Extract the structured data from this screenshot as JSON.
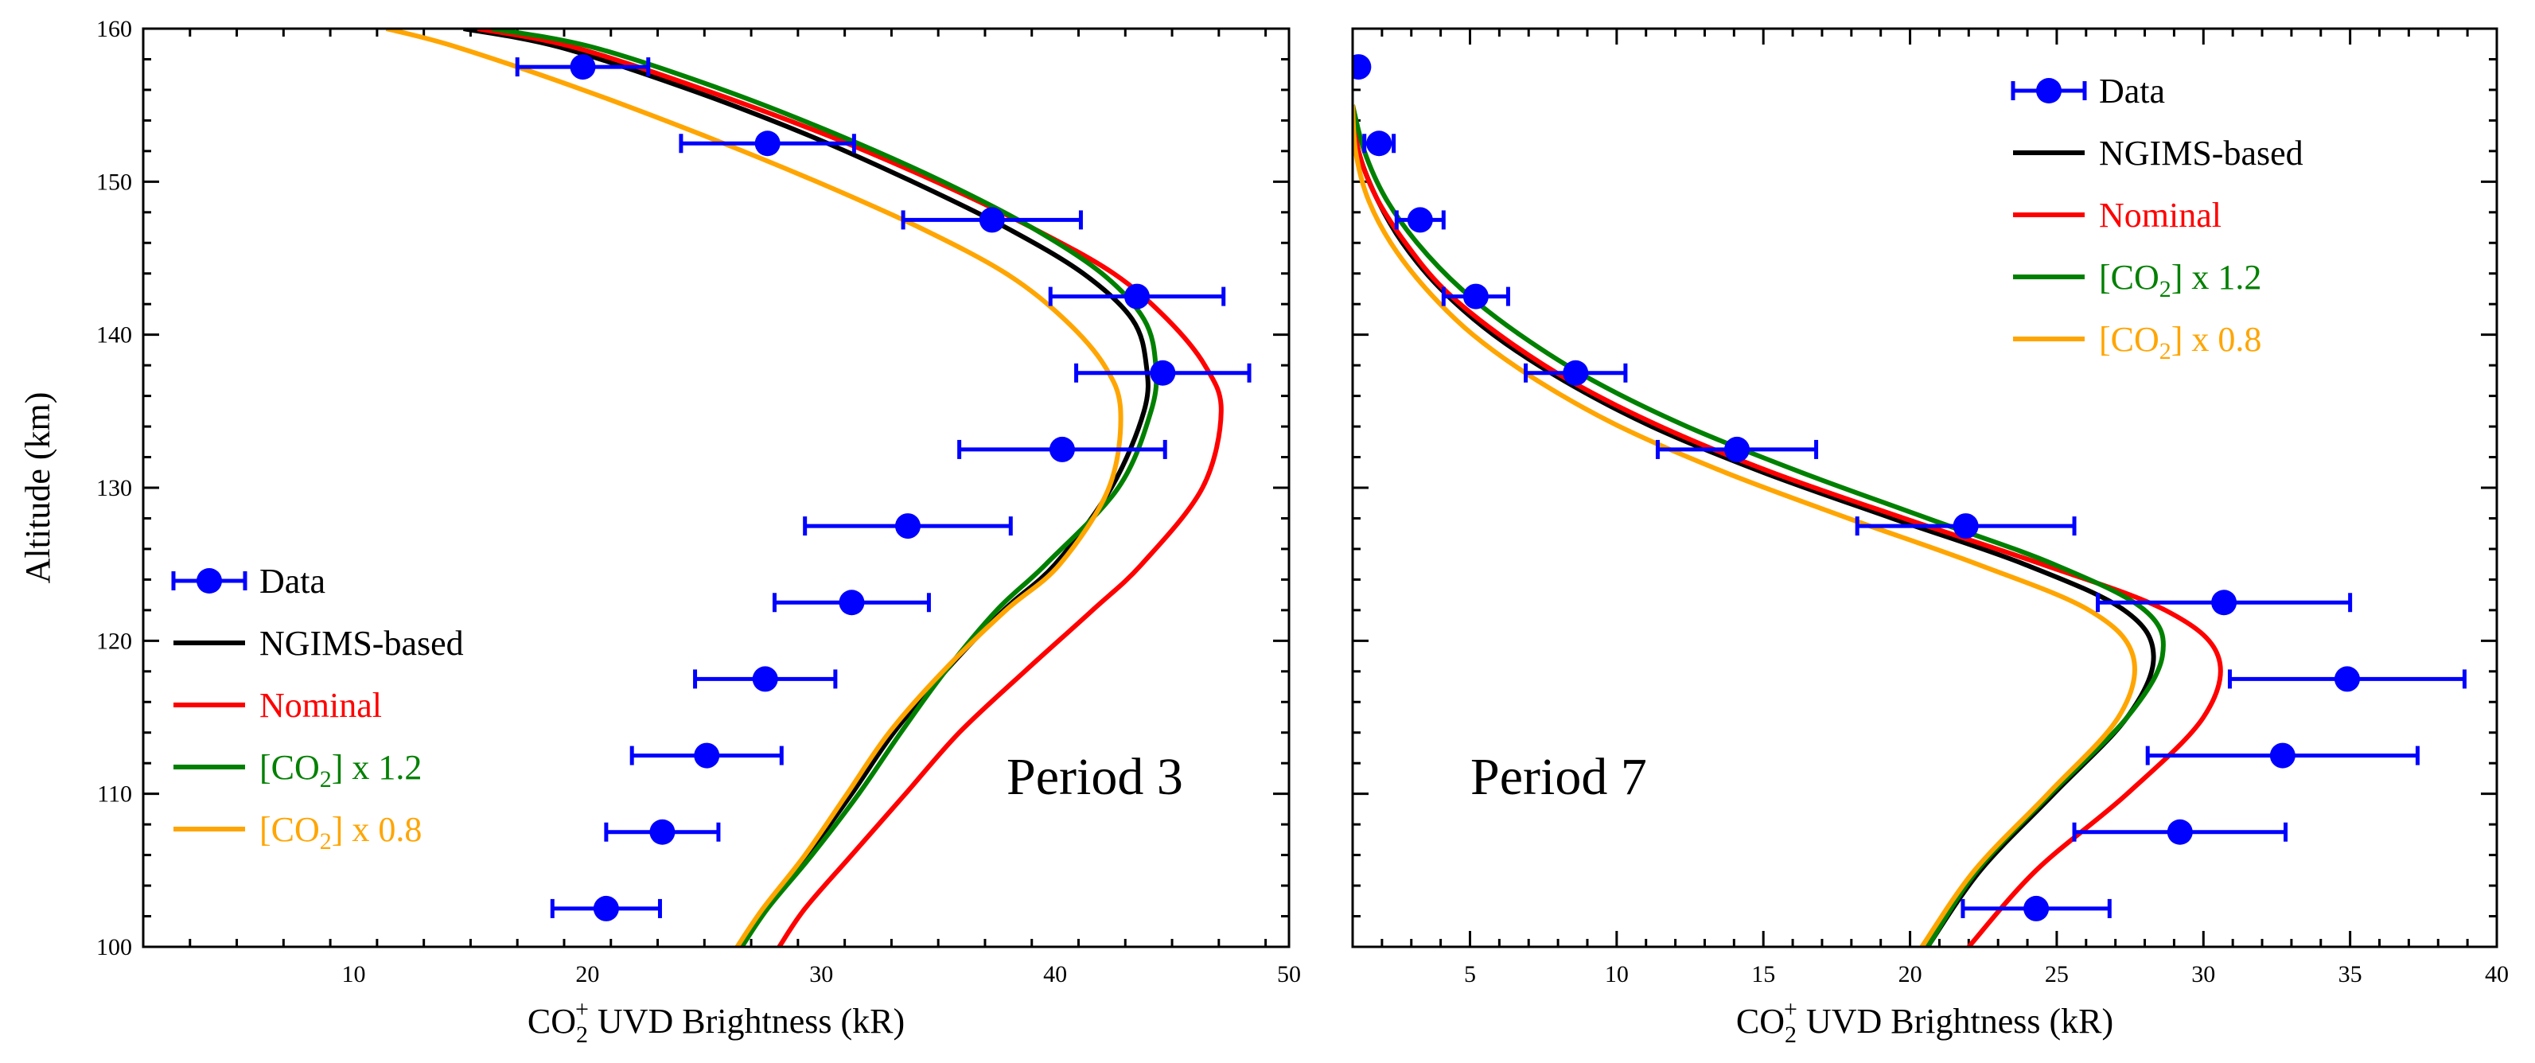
{
  "chart_data": [
    {
      "type": "line",
      "panel_label": "Period 3",
      "xlabel": {
        "main": "CO",
        "sub": "2",
        "sup": "+",
        "rest": " UVD Brightness (kR)"
      },
      "ylabel": "Altitude (km)",
      "xlim": [
        1,
        50
      ],
      "ylim": [
        100,
        160
      ],
      "xticks": [
        10,
        20,
        30,
        40,
        50
      ],
      "yticks": [
        100,
        110,
        120,
        130,
        140,
        150,
        160
      ],
      "legend_position": "lower-left",
      "data": {
        "name": "Data",
        "color": "#0000ff",
        "points": [
          {
            "x": 20.8,
            "y": 102.5,
            "xerr": 2.3
          },
          {
            "x": 23.2,
            "y": 107.5,
            "xerr": 2.4
          },
          {
            "x": 25.1,
            "y": 112.5,
            "xerr": 3.2
          },
          {
            "x": 27.6,
            "y": 117.5,
            "xerr": 3.0
          },
          {
            "x": 31.3,
            "y": 122.5,
            "xerr": 3.3
          },
          {
            "x": 33.7,
            "y": 127.5,
            "xerr": 4.4
          },
          {
            "x": 40.3,
            "y": 132.5,
            "xerr": 4.4
          },
          {
            "x": 44.6,
            "y": 137.5,
            "xerr": 3.7
          },
          {
            "x": 43.5,
            "y": 142.5,
            "xerr": 3.7
          },
          {
            "x": 37.3,
            "y": 147.5,
            "xerr": 3.8
          },
          {
            "x": 27.7,
            "y": 152.5,
            "xerr": 3.7
          },
          {
            "x": 19.8,
            "y": 157.5,
            "xerr": 2.8
          }
        ]
      },
      "series": [
        {
          "name": "NGIMS-based",
          "color": "#000000",
          "x": [
            26.6,
            27.6,
            29.4,
            31.3,
            33.1,
            35.3,
            37.8,
            40.0,
            42.4,
            43.8,
            43.9,
            43.3,
            41.2,
            37.9,
            33.9,
            29.5,
            24.4,
            18.8,
            14.7
          ],
          "y": [
            100,
            102.5,
            106,
            110,
            114,
            118,
            122,
            125,
            130,
            135,
            138,
            141,
            144,
            147,
            150,
            153,
            156,
            158.8,
            160
          ]
        },
        {
          "name": "Nominal",
          "color": "#ff0000",
          "x": [
            28.2,
            29.3,
            31.3,
            33.6,
            35.9,
            38.7,
            41.6,
            43.7,
            46.3,
            47.1,
            46.4,
            44.8,
            42.5,
            39.0,
            34.9,
            30.3,
            25.0,
            19.4,
            15.3
          ],
          "y": [
            100,
            102.5,
            106,
            110,
            114,
            118,
            122,
            125,
            130,
            135,
            138,
            141,
            144,
            147,
            150,
            153,
            156,
            158.8,
            160
          ]
        },
        {
          "name": "[CO2] x 1.2",
          "label_main": "[CO",
          "label_sub": "2",
          "label_rest": "] x 1.2",
          "color": "#008000",
          "x": [
            26.6,
            27.7,
            29.6,
            31.6,
            33.4,
            35.3,
            37.5,
            39.6,
            42.7,
            44.1,
            44.3,
            43.8,
            42.0,
            39.0,
            35.2,
            30.8,
            25.8,
            20.2,
            15.9
          ],
          "y": [
            100,
            102.5,
            106,
            110,
            114,
            118,
            122,
            125,
            130,
            135,
            138,
            141,
            144,
            147,
            150,
            153,
            156,
            158.8,
            160
          ]
        },
        {
          "name": "[CO2] x 0.8",
          "label_main": "[CO",
          "label_sub": "2",
          "label_rest": "] x 0.8",
          "color": "#ffa500",
          "x": [
            26.4,
            27.5,
            29.3,
            31.1,
            32.9,
            35.2,
            37.9,
            40.2,
            42.3,
            42.8,
            42.1,
            40.4,
            37.9,
            34.2,
            29.8,
            25.0,
            19.8,
            14.4,
            11.4
          ],
          "y": [
            100,
            102.5,
            106,
            110,
            114,
            118,
            122,
            125,
            130,
            135,
            138,
            141,
            144,
            147,
            150,
            153,
            156,
            158.8,
            160
          ]
        }
      ]
    },
    {
      "type": "line",
      "panel_label": "Period 7",
      "xlabel": {
        "main": "CO",
        "sub": "2",
        "sup": "+",
        "rest": " UVD Brightness (kR)"
      },
      "xlim": [
        1,
        40
      ],
      "ylim": [
        100,
        160
      ],
      "xticks": [
        5,
        10,
        15,
        20,
        25,
        30,
        35,
        40
      ],
      "yticks": [
        100,
        110,
        120,
        130,
        140,
        150,
        160
      ],
      "legend_position": "top-right",
      "data": {
        "name": "Data",
        "color": "#0000ff",
        "points": [
          {
            "x": 24.3,
            "y": 102.5,
            "xerr": 2.5
          },
          {
            "x": 29.2,
            "y": 107.5,
            "xerr": 3.6
          },
          {
            "x": 32.7,
            "y": 112.5,
            "xerr": 4.6
          },
          {
            "x": 34.9,
            "y": 117.5,
            "xerr": 4.0
          },
          {
            "x": 30.7,
            "y": 122.5,
            "xerr": 4.3
          },
          {
            "x": 21.9,
            "y": 127.5,
            "xerr": 3.7
          },
          {
            "x": 14.1,
            "y": 132.5,
            "xerr": 2.7
          },
          {
            "x": 8.6,
            "y": 137.5,
            "xerr": 1.7
          },
          {
            "x": 5.2,
            "y": 142.5,
            "xerr": 1.1
          },
          {
            "x": 3.3,
            "y": 147.5,
            "xerr": 0.8
          },
          {
            "x": 1.9,
            "y": 152.5,
            "xerr": 0.5
          },
          {
            "x": 1.2,
            "y": 157.5,
            "xerr": 0.2
          }
        ]
      },
      "series": [
        {
          "name": "NGIMS-based",
          "color": "#000000",
          "x": [
            20.6,
            22.4,
            24.9,
            27.4,
            28.3,
            27.3,
            23.9,
            19.4,
            15.0,
            11.2,
            8.2,
            5.8,
            4.0,
            2.7,
            1.8,
            1.2,
            1.0
          ],
          "y": [
            100,
            105,
            110,
            115,
            119,
            122,
            125,
            128,
            131,
            134,
            137,
            140,
            143,
            146,
            149,
            152,
            155
          ]
        },
        {
          "name": "Nominal",
          "color": "#ff0000",
          "x": [
            22.0,
            24.3,
            27.4,
            30.0,
            30.5,
            28.7,
            24.5,
            19.8,
            15.3,
            11.5,
            8.4,
            6.0,
            4.1,
            2.8,
            1.8,
            1.2,
            1.0
          ],
          "y": [
            100,
            105,
            110,
            115,
            119,
            122,
            125,
            128,
            131,
            134,
            137,
            140,
            143,
            146,
            149,
            152,
            155
          ]
        },
        {
          "name": "[CO2] x 1.2",
          "label_main": "[CO",
          "label_sub": "2",
          "label_rest": "] x 1.2",
          "color": "#008000",
          "x": [
            20.6,
            22.3,
            24.8,
            27.4,
            28.6,
            28.0,
            24.9,
            20.6,
            16.3,
            12.4,
            9.2,
            6.7,
            4.7,
            3.2,
            2.1,
            1.4,
            1.0
          ],
          "y": [
            100,
            105,
            110,
            115,
            119,
            122,
            125,
            128,
            131,
            134,
            137,
            140,
            143,
            146,
            149,
            152,
            155
          ]
        },
        {
          "name": "[CO2] x 0.8",
          "label_main": "[CO",
          "label_sub": "2",
          "label_rest": "] x 0.8",
          "color": "#ffa500",
          "x": [
            20.4,
            22.2,
            24.7,
            27.1,
            27.6,
            26.1,
            22.3,
            17.9,
            13.7,
            10.1,
            7.3,
            5.1,
            3.5,
            2.3,
            1.5,
            1.1,
            1.0
          ],
          "y": [
            100,
            105,
            110,
            115,
            119,
            122,
            125,
            128,
            131,
            134,
            137,
            140,
            143,
            146,
            149,
            152,
            155
          ]
        }
      ]
    }
  ]
}
